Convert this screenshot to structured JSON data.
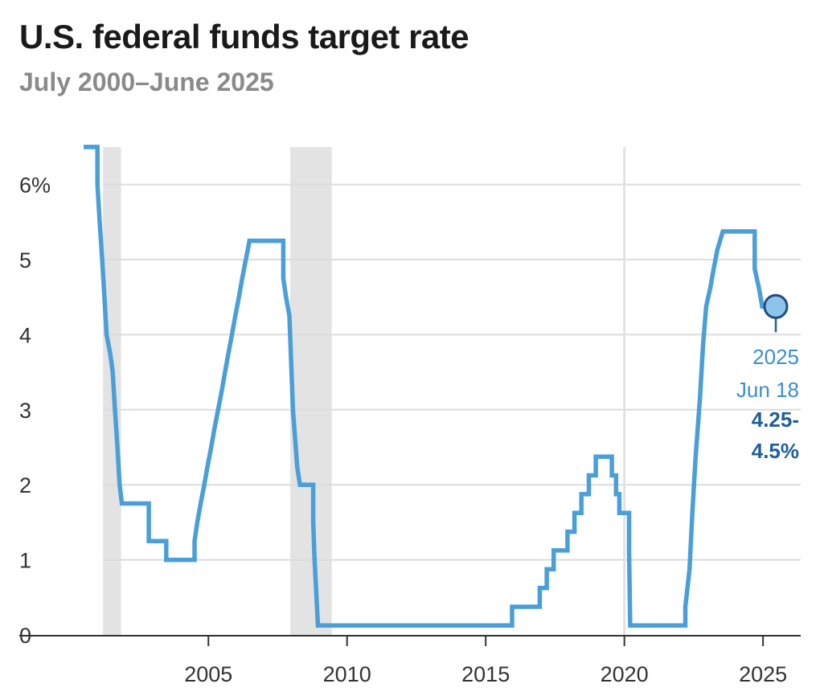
{
  "chart_data": {
    "type": "line",
    "title": "U.S. federal funds target rate",
    "subtitle": "July 2000–June 2025",
    "xlabel": "",
    "ylabel": "",
    "xlim": [
      2000.5,
      2025.9
    ],
    "ylim": [
      0,
      6.5
    ],
    "grid": true,
    "y_ticks": [
      {
        "value": 0,
        "label": "0"
      },
      {
        "value": 1,
        "label": "1"
      },
      {
        "value": 2,
        "label": "2"
      },
      {
        "value": 3,
        "label": "3"
      },
      {
        "value": 4,
        "label": "4"
      },
      {
        "value": 5,
        "label": "5"
      },
      {
        "value": 6,
        "label": "6%"
      }
    ],
    "x_ticks": [
      {
        "value": 2005,
        "label": "2005"
      },
      {
        "value": 2010,
        "label": "2010"
      },
      {
        "value": 2015,
        "label": "2015"
      },
      {
        "value": 2020,
        "label": "2020"
      },
      {
        "value": 2025,
        "label": "2025"
      }
    ],
    "shaded_periods": [
      [
        2001.2,
        2001.85
      ],
      [
        2007.95,
        2009.45
      ]
    ],
    "vertical_rule": 2020.0,
    "series": [
      {
        "color": "#4a9fd8",
        "points": [
          [
            2000.5,
            6.5
          ],
          [
            2001.0,
            6.5
          ],
          [
            2001.0,
            6.0
          ],
          [
            2001.08,
            5.5
          ],
          [
            2001.17,
            5.0
          ],
          [
            2001.25,
            4.5
          ],
          [
            2001.33,
            4.0
          ],
          [
            2001.46,
            3.75
          ],
          [
            2001.55,
            3.5
          ],
          [
            2001.63,
            3.0
          ],
          [
            2001.72,
            2.5
          ],
          [
            2001.8,
            2.0
          ],
          [
            2001.88,
            1.75
          ],
          [
            2002.85,
            1.75
          ],
          [
            2002.85,
            1.25
          ],
          [
            2003.48,
            1.25
          ],
          [
            2003.48,
            1.0
          ],
          [
            2004.5,
            1.0
          ],
          [
            2004.5,
            1.25
          ],
          [
            2004.6,
            1.5
          ],
          [
            2004.72,
            1.75
          ],
          [
            2004.85,
            2.0
          ],
          [
            2004.97,
            2.25
          ],
          [
            2005.1,
            2.5
          ],
          [
            2005.22,
            2.75
          ],
          [
            2005.35,
            3.0
          ],
          [
            2005.48,
            3.25
          ],
          [
            2005.6,
            3.5
          ],
          [
            2005.72,
            3.75
          ],
          [
            2005.85,
            4.0
          ],
          [
            2005.97,
            4.25
          ],
          [
            2006.1,
            4.5
          ],
          [
            2006.22,
            4.75
          ],
          [
            2006.35,
            5.0
          ],
          [
            2006.48,
            5.25
          ],
          [
            2007.7,
            5.25
          ],
          [
            2007.7,
            4.75
          ],
          [
            2007.8,
            4.5
          ],
          [
            2007.92,
            4.25
          ],
          [
            2008.05,
            3.0
          ],
          [
            2008.2,
            2.25
          ],
          [
            2008.3,
            2.0
          ],
          [
            2008.78,
            2.0
          ],
          [
            2008.78,
            1.5
          ],
          [
            2008.83,
            1.0
          ],
          [
            2008.95,
            0.125
          ],
          [
            2015.95,
            0.125
          ],
          [
            2015.95,
            0.375
          ],
          [
            2016.95,
            0.375
          ],
          [
            2016.95,
            0.625
          ],
          [
            2017.2,
            0.625
          ],
          [
            2017.2,
            0.875
          ],
          [
            2017.45,
            0.875
          ],
          [
            2017.45,
            1.125
          ],
          [
            2017.95,
            1.125
          ],
          [
            2017.95,
            1.375
          ],
          [
            2018.2,
            1.375
          ],
          [
            2018.2,
            1.625
          ],
          [
            2018.45,
            1.625
          ],
          [
            2018.45,
            1.875
          ],
          [
            2018.72,
            1.875
          ],
          [
            2018.72,
            2.125
          ],
          [
            2018.97,
            2.125
          ],
          [
            2018.97,
            2.375
          ],
          [
            2019.55,
            2.375
          ],
          [
            2019.55,
            2.125
          ],
          [
            2019.7,
            2.125
          ],
          [
            2019.7,
            1.875
          ],
          [
            2019.82,
            1.875
          ],
          [
            2019.82,
            1.625
          ],
          [
            2020.17,
            1.625
          ],
          [
            2020.17,
            1.125
          ],
          [
            2020.21,
            0.125
          ],
          [
            2022.2,
            0.125
          ],
          [
            2022.2,
            0.375
          ],
          [
            2022.35,
            0.875
          ],
          [
            2022.45,
            1.625
          ],
          [
            2022.57,
            2.375
          ],
          [
            2022.72,
            3.125
          ],
          [
            2022.84,
            3.875
          ],
          [
            2022.95,
            4.375
          ],
          [
            2023.1,
            4.625
          ],
          [
            2023.22,
            4.875
          ],
          [
            2023.35,
            5.125
          ],
          [
            2023.55,
            5.375
          ],
          [
            2024.7,
            5.375
          ],
          [
            2024.7,
            4.875
          ],
          [
            2024.85,
            4.625
          ],
          [
            2024.97,
            4.375
          ],
          [
            2025.46,
            4.375
          ]
        ]
      }
    ],
    "annotation": {
      "x": 2025.46,
      "y": 4.375,
      "year": "2025",
      "date": "Jun 18",
      "value_line1": "4.25-",
      "value_line2": "4.5%"
    }
  }
}
